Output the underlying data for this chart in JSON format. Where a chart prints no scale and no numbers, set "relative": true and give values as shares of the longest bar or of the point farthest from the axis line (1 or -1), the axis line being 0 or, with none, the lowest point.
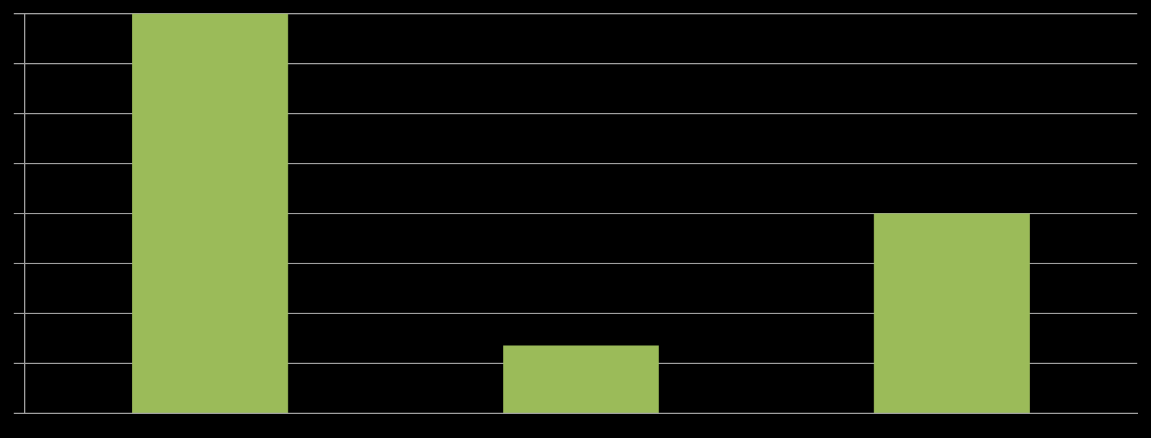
{
  "chart_data": {
    "type": "bar",
    "categories": [
      null,
      null,
      null
    ],
    "values": [
      1,
      0.17,
      0.5
    ],
    "color": "#9bbb59",
    "relative": true,
    "grid": true
  }
}
